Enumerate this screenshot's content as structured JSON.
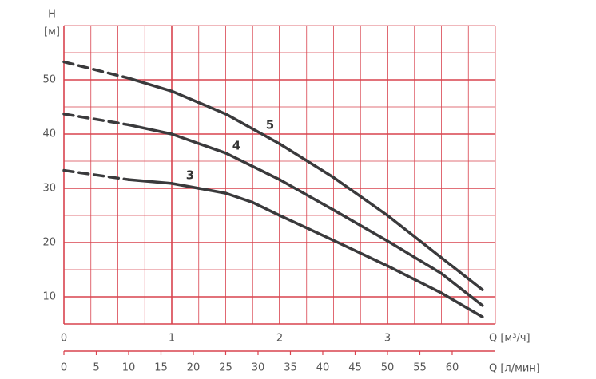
{
  "chart_data": {
    "type": "line",
    "y_label_symbol": "H",
    "y_label_unit": "[м]",
    "x_label": "Q [м³/ч]",
    "x2_label": "Q [л/мин]",
    "xlim": [
      0,
      4
    ],
    "xticks": [
      0,
      1,
      2,
      3
    ],
    "x2lim": [
      0,
      66.67
    ],
    "x2ticks": [
      0,
      5,
      10,
      15,
      20,
      25,
      30,
      35,
      40,
      45,
      50,
      55,
      60
    ],
    "ylim": [
      5,
      60
    ],
    "yticks": [
      10,
      20,
      30,
      40,
      50
    ],
    "grid": true,
    "minor_grid": {
      "x": 0.25,
      "y": 5
    },
    "grid_color": "#d9434e",
    "series": [
      {
        "name": "5",
        "color": "#3a3a3c",
        "x": [
          0,
          0.6,
          1.0,
          1.5,
          2.0,
          2.5,
          3.0,
          3.5,
          3.88
        ],
        "values": [
          53.3,
          50.3,
          47.9,
          43.7,
          38.2,
          32,
          25,
          17.2,
          11.3
        ],
        "segment_styles": [
          "dashed",
          "solid",
          "solid",
          "solid",
          "solid",
          "solid",
          "solid",
          "solid",
          "solid"
        ]
      },
      {
        "name": "4",
        "color": "#3a3a3c",
        "x": [
          0,
          0.6,
          1.0,
          1.5,
          2.0,
          2.5,
          3.0,
          3.5,
          3.88
        ],
        "values": [
          43.7,
          41.7,
          40,
          36.5,
          31.6,
          26,
          20.3,
          14.3,
          8.4
        ],
        "segment_styles": [
          "dashed",
          "solid",
          "solid",
          "solid",
          "solid",
          "solid",
          "solid",
          "solid",
          "solid"
        ]
      },
      {
        "name": "3",
        "color": "#3a3a3c",
        "x": [
          0,
          0.6,
          1.0,
          1.25,
          1.5,
          1.75,
          2.0,
          2.5,
          3.0,
          3.5,
          3.88
        ],
        "values": [
          33.3,
          31.6,
          30.9,
          30,
          29.1,
          27.4,
          25,
          20.4,
          15.7,
          10.7,
          6.3
        ],
        "segment_styles": [
          "dashed",
          "solid",
          "solid",
          "solid",
          "solid",
          "solid",
          "solid",
          "solid",
          "solid",
          "solid",
          "solid"
        ]
      }
    ]
  }
}
